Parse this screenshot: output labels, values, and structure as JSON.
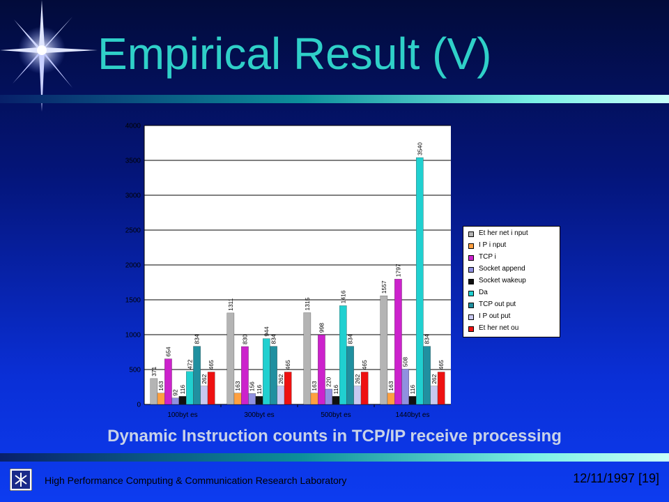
{
  "slide": {
    "title": "Empirical Result (V)",
    "caption": "Dynamic Instruction counts in TCP/IP receive processing",
    "footer_lab": "High Performance Computing & Communication Research Laboratory",
    "footer_date": "12/11/1997",
    "page_number": "[19]"
  },
  "chart_data": {
    "type": "bar",
    "title": "",
    "xlabel": "",
    "ylabel": "",
    "ylim": [
      0,
      4000
    ],
    "yticks": [
      0,
      500,
      1000,
      1500,
      2000,
      2500,
      3000,
      3500,
      4000
    ],
    "categories": [
      "100byt es",
      "300byt es",
      "500byt es",
      "1440byt es"
    ],
    "legend_position": "right",
    "series": [
      {
        "name": "Et her net   i nput",
        "color": "#b4b4b4",
        "values": [
          371,
          1311,
          1315,
          1557
        ]
      },
      {
        "name": "I P  i nput",
        "color": "#ffa040",
        "values": [
          163,
          163,
          163,
          163
        ]
      },
      {
        "name": "TCP  i",
        "color": "#cc22cc",
        "values": [
          654,
          830,
          998,
          1797
        ]
      },
      {
        "name": "Socket   append",
        "color": "#9090e0",
        "values": [
          92,
          156,
          220,
          508
        ]
      },
      {
        "name": "Socket   wakeup",
        "color": "#101010",
        "values": [
          116,
          116,
          116,
          116
        ]
      },
      {
        "name": "Da",
        "color": "#20d0d0",
        "values": [
          472,
          944,
          1416,
          3540
        ]
      },
      {
        "name": "TCP out put",
        "color": "#2090a0",
        "values": [
          834,
          834,
          834,
          834
        ]
      },
      {
        "name": "I P  out put",
        "color": "#c8c8f0",
        "values": [
          262,
          262,
          262,
          262
        ]
      },
      {
        "name": "Et her net   ou",
        "color": "#ee1111",
        "values": [
          465,
          465,
          465,
          465
        ]
      }
    ]
  }
}
